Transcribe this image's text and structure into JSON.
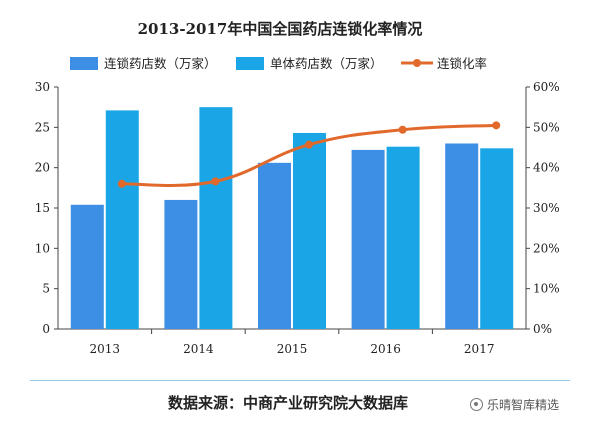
{
  "chart_data": {
    "type": "bar",
    "title": "2013-2017年中国全国药店连锁化率情况",
    "categories": [
      "2013",
      "2014",
      "2015",
      "2016",
      "2017"
    ],
    "series": [
      {
        "name": "连锁药店数（万家）",
        "kind": "bar",
        "axis": "left",
        "color": "#3d8fe6",
        "values": [
          15.4,
          16.0,
          20.6,
          22.2,
          23.0
        ]
      },
      {
        "name": "单体药店数（万家）",
        "kind": "bar",
        "axis": "left",
        "color": "#1aa6e6",
        "values": [
          27.1,
          27.5,
          24.3,
          22.6,
          22.4
        ]
      },
      {
        "name": "连锁化率",
        "kind": "line",
        "axis": "right",
        "color": "#e2692c",
        "values": [
          36.0,
          36.6,
          45.7,
          49.4,
          50.5
        ]
      }
    ],
    "left_axis": {
      "min": 0,
      "max": 30,
      "ticks": [
        "0",
        "5",
        "10",
        "15",
        "20",
        "25",
        "30"
      ]
    },
    "right_axis": {
      "min": 0,
      "max": 60,
      "ticks": [
        "0%",
        "10%",
        "20%",
        "30%",
        "40%",
        "50%",
        "60%"
      ]
    },
    "legend_position": "top",
    "grid": false
  },
  "footer": {
    "source": "数据来源：中商产业研究院大数据库",
    "watermark": "乐晴智库精选"
  }
}
